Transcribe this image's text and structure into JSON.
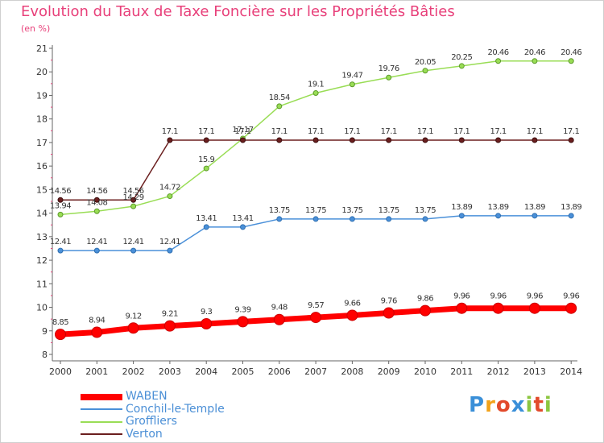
{
  "header": {
    "title": "Evolution du Taux de Taxe Foncière sur les Propriétés Bâties",
    "unit": "(en %)"
  },
  "logo": {
    "text": "Proxiti"
  },
  "chart_data": {
    "type": "line",
    "title": "Evolution du Taux de Taxe Foncière sur les Propriétés Bâties",
    "ylabel": "(en %)",
    "xlabel": "",
    "ylim": [
      8,
      21
    ],
    "yticks": [
      "8",
      "9",
      "10",
      "11",
      "12",
      "13",
      "14",
      "15",
      "16",
      "17",
      "18",
      "19",
      "20",
      "21"
    ],
    "x": [
      "2000",
      "2001",
      "2002",
      "2003",
      "2004",
      "2005",
      "2006",
      "2007",
      "2008",
      "2009",
      "2010",
      "2011",
      "2012",
      "2013",
      "2014"
    ],
    "series": [
      {
        "name": "WABEN",
        "color": "#ff0000",
        "values": [
          8.85,
          8.94,
          9.12,
          9.21,
          9.3,
          9.39,
          9.48,
          9.57,
          9.66,
          9.76,
          9.86,
          9.96,
          9.96,
          9.96,
          9.96
        ]
      },
      {
        "name": "Conchil-le-Temple",
        "color": "#4a90d9",
        "values": [
          12.41,
          12.41,
          12.41,
          12.41,
          13.41,
          13.41,
          13.75,
          13.75,
          13.75,
          13.75,
          13.75,
          13.89,
          13.89,
          13.89,
          13.89
        ]
      },
      {
        "name": "Groffliers",
        "color": "#99dd55",
        "values": [
          13.94,
          14.08,
          14.29,
          14.72,
          15.9,
          17.17,
          18.54,
          19.1,
          19.47,
          19.76,
          20.05,
          20.25,
          20.46,
          20.46,
          20.46
        ]
      },
      {
        "name": "Verton",
        "color": "#6b1f1f",
        "values": [
          14.56,
          14.56,
          14.56,
          17.1,
          17.1,
          17.1,
          17.1,
          17.1,
          17.1,
          17.1,
          17.1,
          17.1,
          17.1,
          17.1,
          17.1
        ]
      }
    ],
    "labels": {
      "WABEN": [
        "8.85",
        "8.94",
        "9.12",
        "9.21",
        "9.3",
        "9.39",
        "9.48",
        "9.57",
        "9.66",
        "9.76",
        "9.86",
        "9.96",
        "9.96",
        "9.96",
        "9.96"
      ],
      "Conchil-le-Temple": [
        "12.41",
        "12.41",
        "12.41",
        "12.41",
        "13.41",
        "13.41",
        "13.75",
        "13.75",
        "13.75",
        "13.75",
        "13.75",
        "13.89",
        "13.89",
        "13.89",
        "13.89"
      ],
      "Groffliers": [
        "13.94",
        "14.08",
        "14.29",
        "14.72",
        "15.9",
        "17.17",
        "18.54",
        "19.1",
        "19.47",
        "19.76",
        "20.05",
        "20.25",
        "20.46",
        "20.46",
        "20.46"
      ],
      "Verton": [
        "14.56",
        "14.56",
        "14.56",
        "17.1",
        "17.1",
        "17.1",
        "17.1",
        "17.1",
        "17.1",
        "17.1",
        "17.1",
        "17.1",
        "17.1",
        "17.1",
        "17.1"
      ]
    },
    "grid": false,
    "legend": "bottom-left"
  }
}
